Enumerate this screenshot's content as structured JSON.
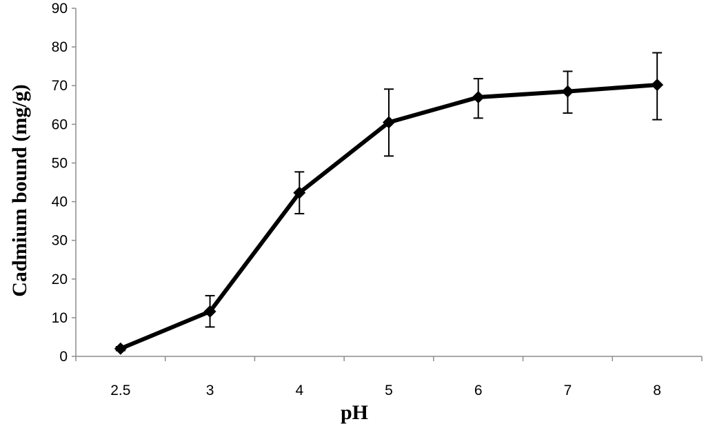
{
  "chart_data": {
    "type": "line",
    "title": "",
    "xlabel": "pH",
    "ylabel": "Cadmium  bound  (mg/g)",
    "categories": [
      "2.5",
      "3",
      "4",
      "5",
      "6",
      "7",
      "8"
    ],
    "series": [
      {
        "values": [
          2,
          11.6,
          42.3,
          60.5,
          67,
          68.5,
          70.2
        ],
        "error_upper": [
          2.5,
          15.7,
          47.7,
          69.1,
          71.8,
          73.7,
          78.5
        ],
        "error_lower": [
          1.5,
          7.6,
          36.9,
          51.8,
          61.6,
          62.9,
          61.2
        ],
        "color": "#000000",
        "marker": "diamond"
      }
    ],
    "yticks": [
      "0",
      "10",
      "20",
      "30",
      "40",
      "50",
      "60",
      "70",
      "80",
      "90"
    ],
    "ylim": [
      0,
      90
    ],
    "grid": false,
    "legend": "none"
  }
}
